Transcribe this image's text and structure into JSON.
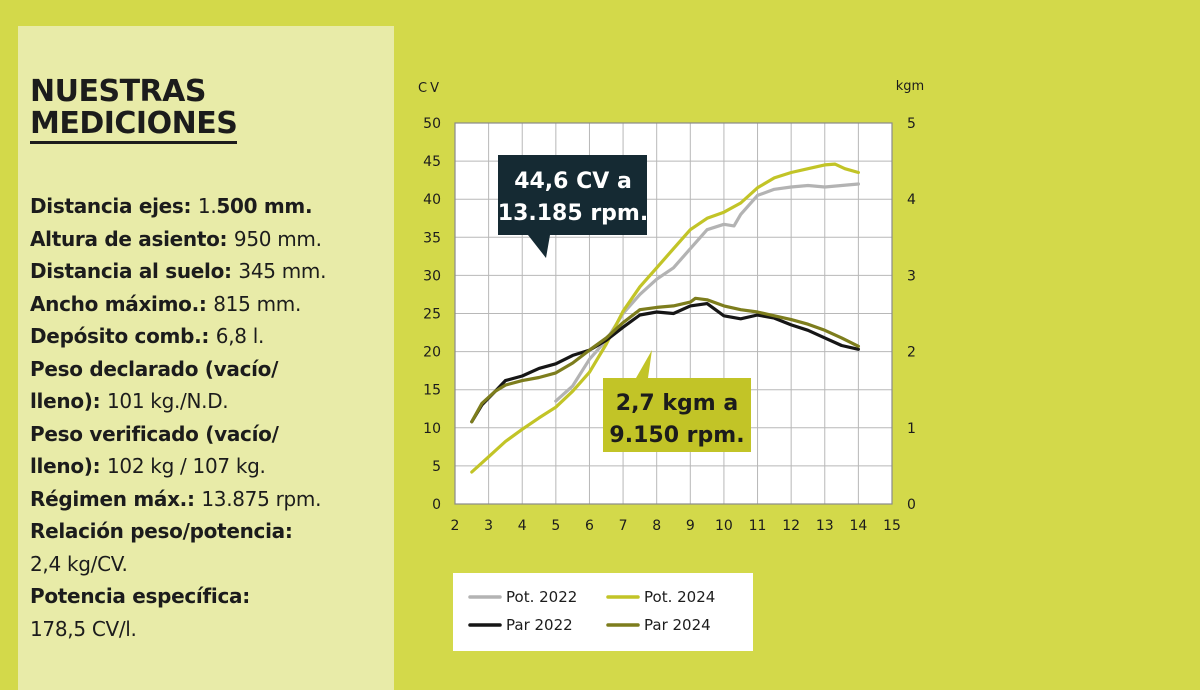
{
  "sidebar": {
    "heading_line1": "NUESTRAS",
    "heading_line2": "MEDICIONES",
    "specs": [
      {
        "label": "Distancia ejes: ",
        "value": "1.",
        "value_bold": "500 mm."
      },
      {
        "label": "Altura de asiento: ",
        "value": "950 mm."
      },
      {
        "label": "Distancia al suelo: ",
        "value": "345 mm."
      },
      {
        "label": "Ancho máximo.: ",
        "value": "815 mm."
      },
      {
        "label": "Depósito comb.: ",
        "value": "6,8 l."
      },
      {
        "label": "Peso declarado (vacío/",
        "value": ""
      },
      {
        "label": "lleno): ",
        "value": " 101 kg./N.D."
      },
      {
        "label": "Peso verificado (vacío/",
        "value": ""
      },
      {
        "label": "lleno): ",
        "value": "102 kg / 107 kg."
      },
      {
        "label": "Régimen máx.: ",
        "value": "13.875 rpm."
      },
      {
        "label": "Relación peso/potencia:",
        "value": ""
      },
      {
        "label": "",
        "value": "2,4 kg/CV."
      },
      {
        "label": "Potencia específica:",
        "value": ""
      },
      {
        "label": "",
        "value": "178,5 CV/l."
      }
    ]
  },
  "chart_data": {
    "type": "line",
    "y_label": "CV",
    "y2_label": "kgm",
    "xlim": [
      2,
      15
    ],
    "ylim": [
      0,
      50
    ],
    "y2lim": [
      0,
      5
    ],
    "x_ticks": [
      "2",
      "3",
      "4",
      "5",
      "6",
      "7",
      "8",
      "9",
      "10",
      "11",
      "12",
      "13",
      "14",
      "15"
    ],
    "y_ticks": [
      "0",
      "5",
      "10",
      "15",
      "20",
      "25",
      "30",
      "35",
      "40",
      "45",
      "50"
    ],
    "y2_ticks": [
      "0",
      "1",
      "2",
      "3",
      "4",
      "5"
    ],
    "grid": true,
    "series": [
      {
        "name": "Pot. 2022",
        "axis": "left",
        "color": "#b3b3b3",
        "x": [
          5.0,
          5.5,
          6.0,
          6.5,
          7.0,
          7.5,
          8.0,
          8.5,
          9.0,
          9.5,
          10.0,
          10.3,
          10.5,
          11.0,
          11.5,
          12.0,
          12.5,
          13.0,
          13.5,
          14.0
        ],
        "y": [
          13.5,
          15.5,
          19.0,
          21.5,
          25.0,
          27.5,
          29.5,
          31.0,
          33.5,
          36.0,
          36.7,
          36.5,
          38.0,
          40.5,
          41.3,
          41.6,
          41.8,
          41.6,
          41.8,
          42.0
        ]
      },
      {
        "name": "Pot. 2024",
        "axis": "left",
        "color": "#c2c427",
        "x": [
          2.5,
          3.0,
          3.5,
          4.0,
          4.5,
          5.0,
          5.5,
          6.0,
          6.5,
          7.0,
          7.5,
          8.0,
          8.5,
          9.0,
          9.5,
          10.0,
          10.5,
          11.0,
          11.5,
          12.0,
          12.5,
          13.0,
          13.3,
          13.6,
          14.0
        ],
        "y": [
          4.2,
          6.2,
          8.2,
          9.8,
          11.3,
          12.7,
          14.8,
          17.3,
          21.0,
          25.3,
          28.5,
          31.0,
          33.5,
          36.0,
          37.5,
          38.3,
          39.5,
          41.5,
          42.8,
          43.5,
          44.0,
          44.5,
          44.6,
          44.0,
          43.5
        ]
      },
      {
        "name": "Par 2022",
        "axis": "right",
        "color": "#161616",
        "x": [
          2.5,
          2.8,
          3.2,
          3.5,
          4.0,
          4.5,
          5.0,
          5.5,
          6.0,
          6.5,
          7.0,
          7.5,
          8.0,
          8.5,
          9.0,
          9.5,
          10.0,
          10.5,
          11.0,
          11.5,
          12.0,
          12.5,
          13.0,
          13.5,
          14.0
        ],
        "y": [
          1.08,
          1.3,
          1.48,
          1.62,
          1.68,
          1.78,
          1.84,
          1.95,
          2.02,
          2.15,
          2.32,
          2.48,
          2.52,
          2.5,
          2.6,
          2.63,
          2.47,
          2.43,
          2.48,
          2.44,
          2.35,
          2.28,
          2.18,
          2.08,
          2.03
        ]
      },
      {
        "name": "Par 2024",
        "axis": "right",
        "color": "#7d7d1d",
        "x": [
          2.5,
          2.8,
          3.2,
          3.5,
          4.0,
          4.5,
          5.0,
          5.5,
          6.0,
          6.5,
          7.0,
          7.5,
          8.0,
          8.5,
          9.0,
          9.15,
          9.5,
          10.0,
          10.5,
          11.0,
          11.5,
          12.0,
          12.5,
          13.0,
          13.5,
          14.0
        ],
        "y": [
          1.08,
          1.32,
          1.48,
          1.56,
          1.62,
          1.66,
          1.72,
          1.85,
          2.02,
          2.18,
          2.38,
          2.55,
          2.58,
          2.6,
          2.65,
          2.7,
          2.68,
          2.6,
          2.55,
          2.52,
          2.47,
          2.42,
          2.36,
          2.28,
          2.18,
          2.07
        ]
      }
    ],
    "annotations": [
      {
        "line1": "44,6 CV a",
        "line2": "13.185 rpm."
      },
      {
        "line1": "2,7 kgm a",
        "line2": "9.150 rpm."
      }
    ]
  }
}
